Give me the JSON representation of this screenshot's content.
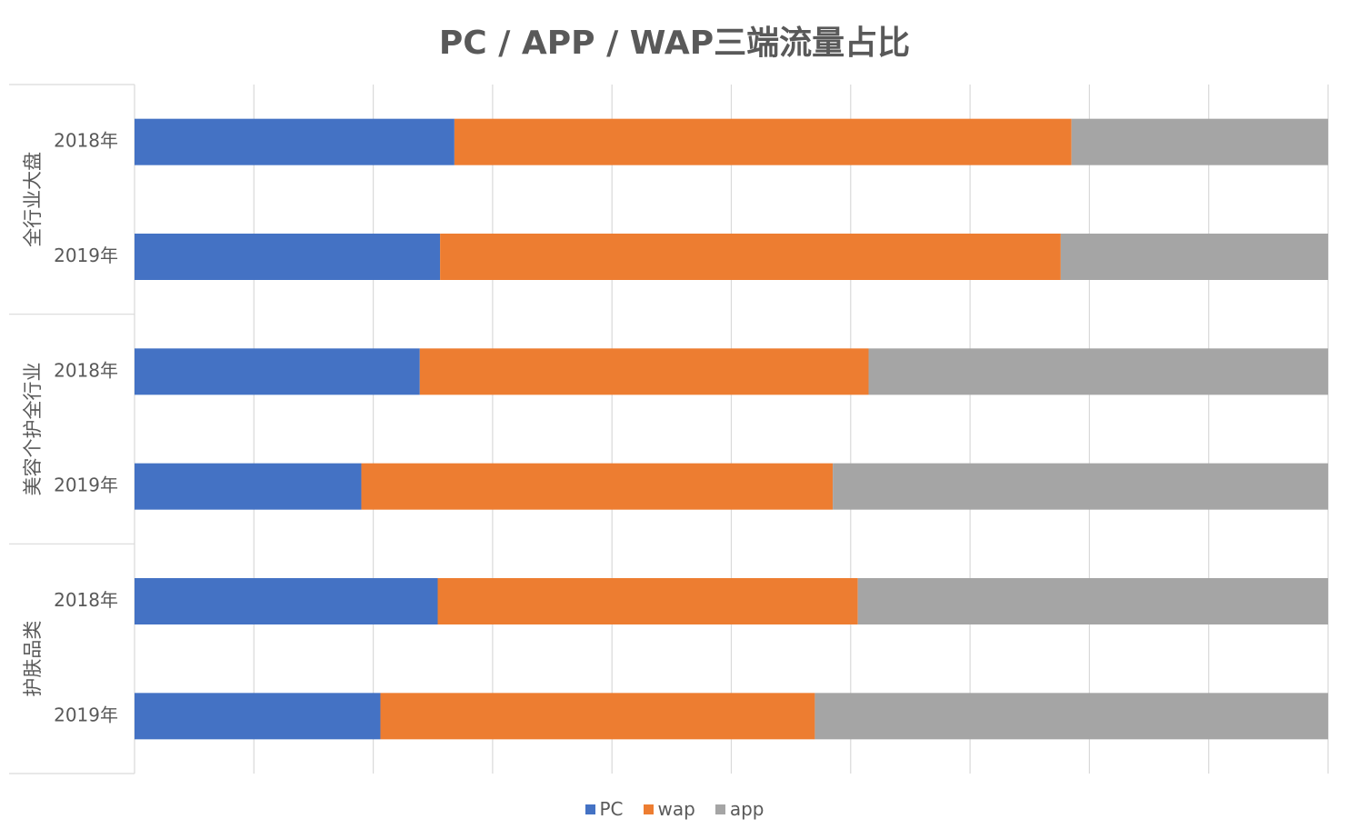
{
  "chart_data": {
    "type": "bar",
    "orientation": "horizontal",
    "stacked": "100%",
    "title": "PC / APP / WAP三端流量占比",
    "groups": [
      {
        "label": "全行业大盘",
        "categories": [
          "2018年",
          "2019年"
        ]
      },
      {
        "label": "美容个护全行业",
        "categories": [
          "2018年",
          "2019年"
        ]
      },
      {
        "label": "护肤品类",
        "categories": [
          "2018年",
          "2019年"
        ]
      }
    ],
    "series": [
      {
        "name": "PC",
        "color": "#4472c4",
        "values": [
          26.8,
          25.6,
          23.9,
          19.0,
          25.4,
          20.6
        ]
      },
      {
        "name": "wap",
        "color": "#ed7d31",
        "values": [
          51.7,
          52.0,
          37.6,
          39.5,
          35.2,
          36.4
        ]
      },
      {
        "name": "app",
        "color": "#a5a5a5",
        "values": [
          21.5,
          22.4,
          38.5,
          41.5,
          39.4,
          43.0
        ]
      }
    ],
    "xlim": [
      0,
      100
    ],
    "grid": true,
    "legend": "bottom"
  }
}
